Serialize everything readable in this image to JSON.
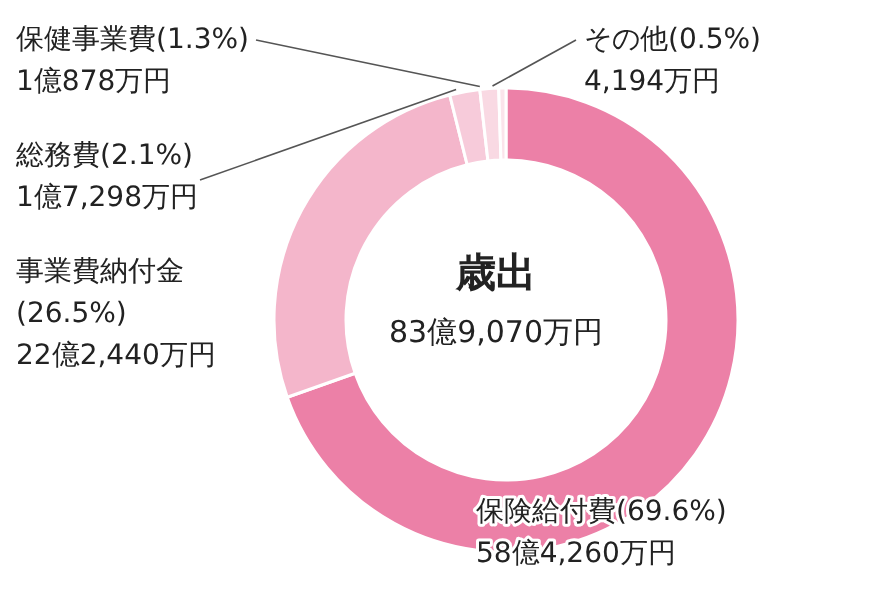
{
  "chart_data": {
    "type": "donut",
    "title": "歳出",
    "subtitle": "83億9,070万円",
    "categories": [
      "保険給付費",
      "事業費納付金",
      "総務費",
      "保健事業費",
      "その他"
    ],
    "values": [
      69.6,
      26.5,
      2.1,
      1.3,
      0.5
    ],
    "value_labels": [
      "(69.6%)",
      "(26.5%)",
      "(2.1%)",
      "(1.3%)",
      "(0.5%)"
    ],
    "annotations": [
      "58億4,260万円",
      "22億2,440万円",
      "1億7,298万円",
      "1億878万円",
      "4,194万円"
    ],
    "colors": [
      "#ec80a7",
      "#f4b6cb",
      "#f7cbda",
      "#f9d9e3",
      "#fbe4eb"
    ]
  }
}
